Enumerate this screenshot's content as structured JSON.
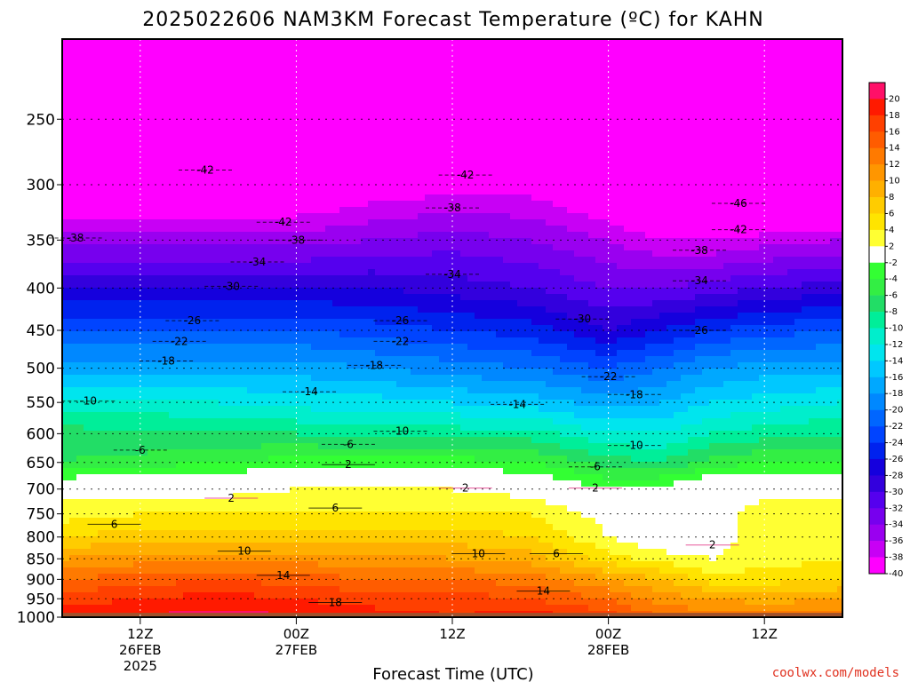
{
  "title": "2025022606 NAM3KM Forecast Temperature (ºC) for KAHN",
  "credit": "coolwx.com/models",
  "chart_data": {
    "type": "heatmap",
    "title": "2025022606 NAM3KM Forecast Temperature (ºC) for KAHN",
    "xlabel": "Forecast Time (UTC)",
    "ylabel": "",
    "x_ticks": [
      {
        "hours": 6,
        "lines": [
          "12Z",
          "26FEB",
          "2025"
        ]
      },
      {
        "hours": 18,
        "lines": [
          "00Z",
          "27FEB"
        ]
      },
      {
        "hours": 30,
        "lines": [
          "12Z"
        ]
      },
      {
        "hours": 42,
        "lines": [
          "00Z",
          "28FEB"
        ]
      },
      {
        "hours": 54,
        "lines": [
          "12Z"
        ]
      }
    ],
    "xlim": [
      0,
      60
    ],
    "y_axis": "pressure (hPa), log scale, inverted",
    "ylim": [
      1000,
      200
    ],
    "y_ticks": [
      250,
      300,
      350,
      400,
      450,
      500,
      550,
      600,
      650,
      700,
      750,
      800,
      850,
      900,
      950,
      1000
    ],
    "colorbar": {
      "labels": [
        20,
        18,
        16,
        14,
        12,
        10,
        8,
        6,
        4,
        2,
        -2,
        -4,
        -6,
        -8,
        -10,
        -12,
        -14,
        -16,
        -18,
        -20,
        -22,
        -24,
        -26,
        -28,
        -30,
        -32,
        -34,
        -36,
        -38,
        -40
      ],
      "colors": [
        "#ff1068",
        "#ff1a00",
        "#ff4000",
        "#ff5c00",
        "#ff7a00",
        "#ff9600",
        "#ffb000",
        "#ffcc00",
        "#ffe400",
        "#ffff33",
        "#ffffff",
        "#33ff33",
        "#33ee44",
        "#22dd66",
        "#00ee99",
        "#00eecc",
        "#00e5ee",
        "#00c8ff",
        "#00a8ff",
        "#0088ff",
        "#0066ff",
        "#0044ff",
        "#0022ee",
        "#1500dd",
        "#3300dd",
        "#5500ee",
        "#7700ee",
        "#9a00f0",
        "#c800f5",
        "#ff00ff"
      ]
    },
    "temperature_profile": {
      "pressures": [
        1000,
        950,
        900,
        850,
        800,
        750,
        700,
        650,
        600,
        550,
        500,
        450,
        400,
        350,
        300,
        250
      ],
      "columns": [
        {
          "hours": 0,
          "temps": [
            20,
            17,
            14,
            10,
            6,
            3,
            1,
            -6,
            -7,
            -11,
            -17,
            -22,
            -28,
            -35,
            -42,
            -48
          ]
        },
        {
          "hours": 6,
          "temps": [
            20,
            18,
            15,
            11,
            7,
            4,
            1,
            -5,
            -8,
            -11,
            -17,
            -22,
            -28,
            -35,
            -42,
            -47
          ]
        },
        {
          "hours": 12,
          "temps": [
            21,
            19,
            16,
            11,
            7,
            4,
            1,
            -4,
            -8,
            -12,
            -17,
            -22,
            -28,
            -35,
            -42,
            -46
          ]
        },
        {
          "hours": 18,
          "temps": [
            20,
            18,
            15,
            11,
            7,
            4,
            2,
            -3,
            -8,
            -13,
            -17,
            -22,
            -28,
            -35,
            -42,
            -47
          ]
        },
        {
          "hours": 24,
          "temps": [
            19,
            17,
            14,
            11,
            7,
            4,
            2,
            -3,
            -9,
            -13,
            -18,
            -23,
            -28,
            -34,
            -40,
            -47
          ]
        },
        {
          "hours": 30,
          "temps": [
            18,
            17,
            14,
            10,
            7,
            4,
            2,
            -3,
            -9,
            -14,
            -19,
            -24,
            -29,
            -33,
            -39,
            -46
          ]
        },
        {
          "hours": 36,
          "temps": [
            19,
            16,
            13,
            9,
            6,
            4,
            1,
            -4,
            -9,
            -15,
            -20,
            -25,
            -30,
            -34,
            -39,
            -46
          ]
        },
        {
          "hours": 42,
          "temps": [
            17,
            14,
            10,
            5,
            2,
            1,
            -2,
            -7,
            -12,
            -17,
            -22,
            -28,
            -32,
            -36,
            -42,
            -48
          ]
        },
        {
          "hours": 46,
          "temps": [
            14,
            11,
            8,
            3,
            0,
            -1,
            -1,
            -8,
            -12,
            -16,
            -20,
            -26,
            -32,
            -38,
            -46,
            -50
          ]
        },
        {
          "hours": 50,
          "temps": [
            13,
            10,
            5,
            2,
            1,
            1,
            1,
            -5,
            -10,
            -14,
            -18,
            -24,
            -31,
            -38,
            -46,
            -51
          ]
        },
        {
          "hours": 54,
          "temps": [
            13,
            9,
            5,
            3,
            3,
            3,
            1,
            -4,
            -9,
            -13,
            -17,
            -23,
            -30,
            -37,
            -46,
            -51
          ]
        },
        {
          "hours": 60,
          "temps": [
            14,
            10,
            6,
            4,
            4,
            3,
            1,
            -4,
            -8,
            -12,
            -17,
            -22,
            -29,
            -36,
            -46,
            -51
          ]
        }
      ]
    },
    "contour_labels": [
      {
        "value": -42,
        "hours": 11,
        "pressure": 288
      },
      {
        "value": -42,
        "hours": 31,
        "pressure": 292
      },
      {
        "value": -38,
        "hours": 30,
        "pressure": 320
      },
      {
        "value": -46,
        "hours": 52,
        "pressure": 316
      },
      {
        "value": -42,
        "hours": 17,
        "pressure": 333
      },
      {
        "value": -42,
        "hours": 52,
        "pressure": 340
      },
      {
        "value": -38,
        "hours": 1,
        "pressure": 348
      },
      {
        "value": -38,
        "hours": 18,
        "pressure": 350
      },
      {
        "value": -38,
        "hours": 49,
        "pressure": 360
      },
      {
        "value": -34,
        "hours": 15,
        "pressure": 372
      },
      {
        "value": -34,
        "hours": 30,
        "pressure": 385
      },
      {
        "value": -34,
        "hours": 49,
        "pressure": 392
      },
      {
        "value": -30,
        "hours": 13,
        "pressure": 398
      },
      {
        "value": -30,
        "hours": 40,
        "pressure": 436
      },
      {
        "value": -26,
        "hours": 10,
        "pressure": 438
      },
      {
        "value": -26,
        "hours": 26,
        "pressure": 438
      },
      {
        "value": -26,
        "hours": 49,
        "pressure": 450
      },
      {
        "value": -22,
        "hours": 9,
        "pressure": 464
      },
      {
        "value": -22,
        "hours": 26,
        "pressure": 464
      },
      {
        "value": -22,
        "hours": 42,
        "pressure": 512
      },
      {
        "value": -18,
        "hours": 8,
        "pressure": 490
      },
      {
        "value": -18,
        "hours": 24,
        "pressure": 496
      },
      {
        "value": -18,
        "hours": 44,
        "pressure": 538
      },
      {
        "value": -14,
        "hours": 19,
        "pressure": 534
      },
      {
        "value": -14,
        "hours": 35,
        "pressure": 553
      },
      {
        "value": -10,
        "hours": 2,
        "pressure": 548
      },
      {
        "value": -10,
        "hours": 26,
        "pressure": 596
      },
      {
        "value": -10,
        "hours": 44,
        "pressure": 620
      },
      {
        "value": -6,
        "hours": 6,
        "pressure": 628
      },
      {
        "value": -6,
        "hours": 22,
        "pressure": 618
      },
      {
        "value": -6,
        "hours": 41,
        "pressure": 658
      },
      {
        "value": 2,
        "hours": 22,
        "pressure": 654
      },
      {
        "value": 2,
        "hours": 13,
        "pressure": 718
      },
      {
        "value": 2,
        "hours": 31,
        "pressure": 698
      },
      {
        "value": 2,
        "hours": 41,
        "pressure": 698
      },
      {
        "value": 2,
        "hours": 50,
        "pressure": 818
      },
      {
        "value": 6,
        "hours": 4,
        "pressure": 772
      },
      {
        "value": 6,
        "hours": 21,
        "pressure": 738
      },
      {
        "value": 6,
        "hours": 38,
        "pressure": 838
      },
      {
        "value": 10,
        "hours": 14,
        "pressure": 832
      },
      {
        "value": 10,
        "hours": 32,
        "pressure": 838
      },
      {
        "value": 14,
        "hours": 17,
        "pressure": 890
      },
      {
        "value": 14,
        "hours": 37,
        "pressure": 930
      },
      {
        "value": 18,
        "hours": 21,
        "pressure": 960
      }
    ]
  }
}
